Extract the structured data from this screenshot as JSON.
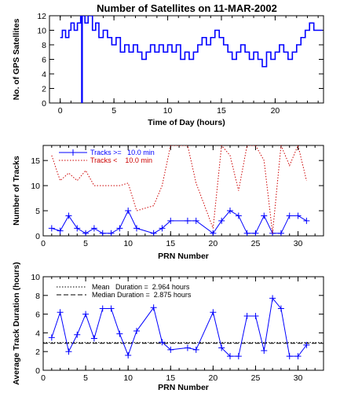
{
  "figure": {
    "title": "Number of Satellites on 11-MAR-2002"
  },
  "colors": {
    "blue": "#0000ff",
    "red": "#cc0000",
    "black": "#000000"
  },
  "chart_data": [
    {
      "type": "line",
      "title": "Number of Satellites on 11-MAR-2002",
      "xlabel": "Time of Day (hours)",
      "ylabel": "No. of GPS Satellites",
      "xlim": [
        -1,
        24.5
      ],
      "ylim": [
        0,
        12
      ],
      "xticks": [
        0,
        5,
        10,
        15,
        20
      ],
      "yticks": [
        0,
        2,
        4,
        6,
        8,
        10,
        12
      ],
      "series": [
        {
          "color": "#0000ff",
          "step": true,
          "x": [
            0,
            0.2,
            0.5,
            0.8,
            1.0,
            1.3,
            1.6,
            1.9,
            2.0,
            2.05,
            2.3,
            2.6,
            3.0,
            3.3,
            3.6,
            4.0,
            4.4,
            4.8,
            5.2,
            5.6,
            6.0,
            6.4,
            6.8,
            7.2,
            7.6,
            8.0,
            8.4,
            8.8,
            9.2,
            9.6,
            10.0,
            10.4,
            10.8,
            11.2,
            11.6,
            12.0,
            12.4,
            12.8,
            13.2,
            13.6,
            14.0,
            14.4,
            14.8,
            15.2,
            15.6,
            16.0,
            16.4,
            16.8,
            17.2,
            17.6,
            18.0,
            18.4,
            18.8,
            19.2,
            19.6,
            20.0,
            20.4,
            20.8,
            21.2,
            21.6,
            22.0,
            22.4,
            22.8,
            23.2,
            23.6,
            24.0
          ],
          "values": [
            9,
            10,
            9,
            10,
            11,
            10,
            11,
            12,
            0,
            12,
            11,
            12,
            10,
            11,
            9,
            10,
            9,
            8,
            9,
            7,
            8,
            7,
            8,
            7,
            6,
            7,
            8,
            7,
            8,
            7,
            8,
            7,
            8,
            6,
            7,
            6,
            7,
            8,
            9,
            8,
            9,
            10,
            9,
            8,
            7,
            6,
            7,
            8,
            7,
            6,
            7,
            6,
            5,
            7,
            6,
            7,
            8,
            7,
            6,
            7,
            8,
            9,
            10,
            11,
            10,
            10
          ]
        }
      ]
    },
    {
      "type": "line",
      "xlabel": "PRN Number",
      "ylabel": "Number of Tracks",
      "xlim": [
        0,
        33
      ],
      "ylim": [
        0,
        18
      ],
      "xticks": [
        0,
        5,
        10,
        15,
        20,
        25,
        30
      ],
      "yticks": [
        0,
        5,
        10,
        15
      ],
      "legend_position": "top",
      "series": [
        {
          "name": "Tracks >=   10.0 min",
          "color": "#0000ff",
          "marker": "plus",
          "x": [
            1,
            2,
            3,
            4,
            5,
            6,
            7,
            8,
            9,
            10,
            11,
            13,
            14,
            15,
            17,
            18,
            20,
            21,
            22,
            23,
            24,
            25,
            26,
            27,
            28,
            29,
            30,
            31
          ],
          "values": [
            1.5,
            1,
            4,
            1.5,
            0.5,
            1.5,
            0.5,
            0.5,
            1.5,
            5,
            1.5,
            0.5,
            1.5,
            3,
            3,
            3,
            0.5,
            3,
            5,
            4,
            0.5,
            0.5,
            4,
            0.5,
            0.5,
            4,
            4,
            3
          ]
        },
        {
          "name": "Tracks <    10.0 min",
          "color": "#cc0000",
          "dashed": true,
          "x": [
            1,
            2,
            3,
            4,
            5,
            6,
            7,
            8,
            9,
            10,
            11,
            13,
            14,
            15,
            17,
            18,
            20,
            21,
            22,
            23,
            24,
            25,
            26,
            27,
            28,
            29,
            30,
            31
          ],
          "values": [
            16,
            11,
            12.5,
            11,
            13,
            10,
            10,
            10,
            10,
            10.5,
            5,
            6,
            10,
            18,
            18,
            10.5,
            1.5,
            18,
            16,
            9,
            18,
            18,
            15,
            0.5,
            18,
            14,
            18,
            11
          ]
        }
      ]
    },
    {
      "type": "line",
      "xlabel": "PRN Number",
      "ylabel": "Average Track Duration (hours)",
      "xlim": [
        0,
        33
      ],
      "ylim": [
        0,
        10
      ],
      "xticks": [
        0,
        5,
        10,
        15,
        20,
        25,
        30
      ],
      "yticks": [
        0,
        2,
        4,
        6,
        8,
        10
      ],
      "legend_position": "top-left",
      "series": [
        {
          "color": "#0000ff",
          "marker": "plus",
          "x": [
            1,
            2,
            3,
            4,
            5,
            6,
            7,
            8,
            9,
            10,
            11,
            13,
            14,
            15,
            17,
            18,
            20,
            21,
            22,
            23,
            24,
            25,
            26,
            27,
            28,
            29,
            30,
            31
          ],
          "values": [
            3.5,
            6.2,
            2,
            3.8,
            6,
            3.4,
            6.6,
            6.6,
            3.9,
            1.6,
            4.2,
            6.7,
            3,
            2.2,
            2.4,
            2.2,
            6.2,
            2.4,
            1.5,
            1.5,
            5.8,
            5.8,
            2.1,
            7.7,
            6.6,
            1.5,
            1.5,
            2.7
          ]
        }
      ],
      "reference_lines": [
        {
          "label": "Mean   Duration =  2.964 hours",
          "value": 2.964,
          "style": "dotted"
        },
        {
          "label": "Median Duration =  2.875 hours",
          "value": 2.875,
          "style": "dashed"
        }
      ]
    }
  ]
}
